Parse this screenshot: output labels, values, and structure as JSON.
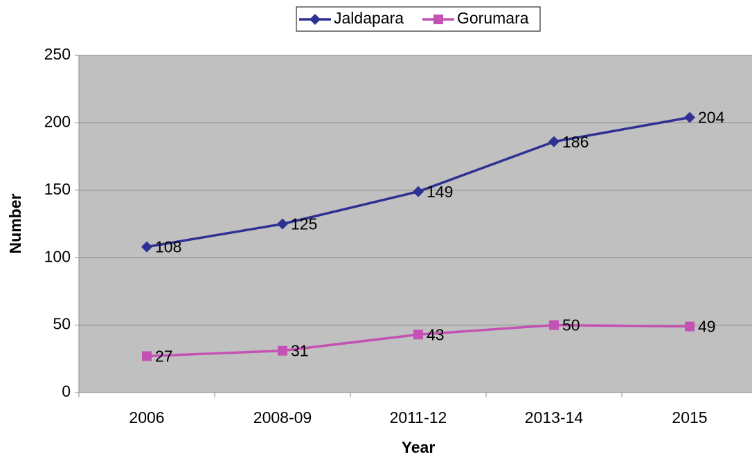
{
  "chart_data": {
    "type": "line",
    "categories": [
      "2006",
      "2008-09",
      "2011-12",
      "2013-14",
      "2015"
    ],
    "series": [
      {
        "name": "Jaldapara",
        "color": "#2e3192",
        "marker": "diamond",
        "values": [
          108,
          125,
          149,
          186,
          204
        ]
      },
      {
        "name": "Gorumara",
        "color": "#c452b4",
        "marker": "square",
        "values": [
          27,
          31,
          43,
          50,
          49
        ]
      }
    ],
    "x_label": "Year",
    "y_label": "Number",
    "ylim": [
      0,
      250
    ],
    "yticks": [
      0,
      50,
      100,
      150,
      200,
      250
    ],
    "grid": true,
    "legend": "top"
  }
}
